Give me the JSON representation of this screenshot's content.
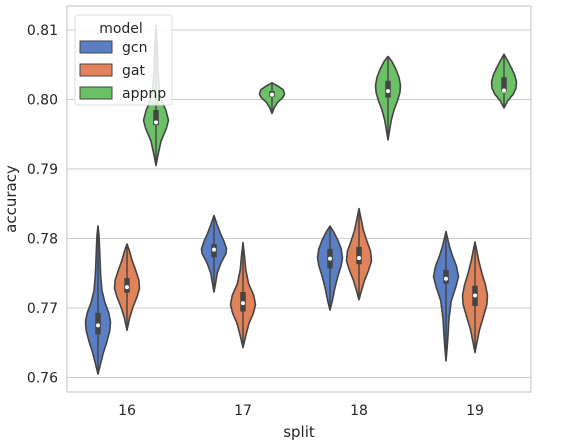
{
  "chart_data": {
    "type": "violin",
    "xlabel": "split",
    "ylabel": "accuracy",
    "categories": [
      "16",
      "17",
      "18",
      "19"
    ],
    "ylim": [
      0.758,
      0.8135
    ],
    "yticks": [
      0.76,
      0.77,
      0.78,
      0.79,
      0.8,
      0.81
    ],
    "ytick_labels": [
      "0.76",
      "0.77",
      "0.78",
      "0.79",
      "0.80",
      "0.81"
    ],
    "grid": true,
    "legend": {
      "title": "model",
      "placement": "top-left"
    },
    "series": [
      {
        "name": "gcn",
        "color": "#5a7fc4",
        "violins": [
          {
            "category": "16",
            "min": 0.7605,
            "max": 0.7818,
            "q1": 0.7662,
            "median": 0.7675,
            "q3": 0.7693,
            "profile": [
              [
                0.7605,
                0.0
              ],
              [
                0.7618,
                0.18
              ],
              [
                0.7635,
                0.42
              ],
              [
                0.7652,
                0.72
              ],
              [
                0.7668,
                0.95
              ],
              [
                0.768,
                1.0
              ],
              [
                0.7693,
                0.86
              ],
              [
                0.7708,
                0.55
              ],
              [
                0.7725,
                0.32
              ],
              [
                0.7745,
                0.22
              ],
              [
                0.7765,
                0.17
              ],
              [
                0.7785,
                0.13
              ],
              [
                0.7805,
                0.08
              ],
              [
                0.7818,
                0.0
              ]
            ]
          },
          {
            "category": "17",
            "min": 0.7723,
            "max": 0.7833,
            "q1": 0.7773,
            "median": 0.7784,
            "q3": 0.7792,
            "profile": [
              [
                0.7723,
                0.0
              ],
              [
                0.7735,
                0.12
              ],
              [
                0.775,
                0.26
              ],
              [
                0.7765,
                0.56
              ],
              [
                0.7778,
                0.95
              ],
              [
                0.7785,
                1.0
              ],
              [
                0.7795,
                0.82
              ],
              [
                0.7808,
                0.5
              ],
              [
                0.782,
                0.25
              ],
              [
                0.7833,
                0.0
              ]
            ]
          },
          {
            "category": "18",
            "min": 0.7697,
            "max": 0.7818,
            "q1": 0.7757,
            "median": 0.7771,
            "q3": 0.7785,
            "profile": [
              [
                0.7697,
                0.0
              ],
              [
                0.771,
                0.18
              ],
              [
                0.7728,
                0.38
              ],
              [
                0.7745,
                0.62
              ],
              [
                0.776,
                0.88
              ],
              [
                0.7772,
                1.0
              ],
              [
                0.7785,
                0.9
              ],
              [
                0.7798,
                0.62
              ],
              [
                0.781,
                0.28
              ],
              [
                0.7818,
                0.0
              ]
            ]
          },
          {
            "category": "19",
            "min": 0.7624,
            "max": 0.781,
            "q1": 0.7735,
            "median": 0.7742,
            "q3": 0.7755,
            "profile": [
              [
                0.7624,
                0.0
              ],
              [
                0.764,
                0.08
              ],
              [
                0.766,
                0.16
              ],
              [
                0.7685,
                0.24
              ],
              [
                0.771,
                0.42
              ],
              [
                0.773,
                0.78
              ],
              [
                0.7745,
                1.0
              ],
              [
                0.776,
                0.84
              ],
              [
                0.7775,
                0.52
              ],
              [
                0.779,
                0.26
              ],
              [
                0.781,
                0.0
              ]
            ]
          }
        ]
      },
      {
        "name": "gat",
        "color": "#e0825a",
        "violins": [
          {
            "category": "16",
            "min": 0.7668,
            "max": 0.7792,
            "q1": 0.7722,
            "median": 0.773,
            "q3": 0.7743,
            "profile": [
              [
                0.7668,
                0.0
              ],
              [
                0.7685,
                0.2
              ],
              [
                0.77,
                0.45
              ],
              [
                0.7715,
                0.78
              ],
              [
                0.7728,
                1.0
              ],
              [
                0.774,
                0.95
              ],
              [
                0.7755,
                0.68
              ],
              [
                0.777,
                0.38
              ],
              [
                0.7782,
                0.2
              ],
              [
                0.7792,
                0.0
              ]
            ]
          },
          {
            "category": "17",
            "min": 0.7643,
            "max": 0.7794,
            "q1": 0.7695,
            "median": 0.7707,
            "q3": 0.7723,
            "profile": [
              [
                0.7643,
                0.0
              ],
              [
                0.766,
                0.22
              ],
              [
                0.7678,
                0.48
              ],
              [
                0.7692,
                0.82
              ],
              [
                0.7705,
                1.0
              ],
              [
                0.7718,
                0.86
              ],
              [
                0.7735,
                0.45
              ],
              [
                0.7755,
                0.22
              ],
              [
                0.7775,
                0.12
              ],
              [
                0.7794,
                0.0
              ]
            ]
          },
          {
            "category": "18",
            "min": 0.7712,
            "max": 0.7843,
            "q1": 0.7763,
            "median": 0.7772,
            "q3": 0.7788,
            "profile": [
              [
                0.7712,
                0.0
              ],
              [
                0.7725,
                0.2
              ],
              [
                0.774,
                0.45
              ],
              [
                0.7755,
                0.78
              ],
              [
                0.7768,
                1.0
              ],
              [
                0.7782,
                0.92
              ],
              [
                0.7797,
                0.62
              ],
              [
                0.7812,
                0.35
              ],
              [
                0.7828,
                0.17
              ],
              [
                0.7843,
                0.0
              ]
            ]
          },
          {
            "category": "19",
            "min": 0.7636,
            "max": 0.7795,
            "q1": 0.7703,
            "median": 0.7718,
            "q3": 0.7732,
            "profile": [
              [
                0.7636,
                0.0
              ],
              [
                0.765,
                0.15
              ],
              [
                0.7668,
                0.35
              ],
              [
                0.7688,
                0.68
              ],
              [
                0.7705,
                0.95
              ],
              [
                0.7718,
                1.0
              ],
              [
                0.7733,
                0.84
              ],
              [
                0.775,
                0.55
              ],
              [
                0.7768,
                0.3
              ],
              [
                0.7782,
                0.15
              ],
              [
                0.7795,
                0.0
              ]
            ]
          }
        ]
      },
      {
        "name": "appnp",
        "color": "#6cc167",
        "violins": [
          {
            "category": "16",
            "min": 0.7905,
            "max": 0.8107,
            "q1": 0.7963,
            "median": 0.7967,
            "q3": 0.7985,
            "profile": [
              [
                0.7905,
                0.0
              ],
              [
                0.792,
                0.16
              ],
              [
                0.794,
                0.4
              ],
              [
                0.7958,
                0.82
              ],
              [
                0.797,
                1.0
              ],
              [
                0.7985,
                0.78
              ],
              [
                0.8,
                0.42
              ],
              [
                0.802,
                0.24
              ],
              [
                0.8045,
                0.16
              ],
              [
                0.8075,
                0.1
              ],
              [
                0.8107,
                0.0
              ]
            ]
          },
          {
            "category": "17",
            "min": 0.798,
            "max": 0.8024,
            "q1": 0.8004,
            "median": 0.8007,
            "q3": 0.8012,
            "profile": [
              [
                0.798,
                0.0
              ],
              [
                0.7988,
                0.18
              ],
              [
                0.7996,
                0.45
              ],
              [
                0.8003,
                0.88
              ],
              [
                0.8008,
                1.0
              ],
              [
                0.8014,
                0.9
              ],
              [
                0.8019,
                0.5
              ],
              [
                0.8024,
                0.0
              ]
            ]
          },
          {
            "category": "18",
            "min": 0.7942,
            "max": 0.8062,
            "q1": 0.8003,
            "median": 0.8012,
            "q3": 0.8027,
            "profile": [
              [
                0.7942,
                0.0
              ],
              [
                0.7955,
                0.12
              ],
              [
                0.797,
                0.26
              ],
              [
                0.7985,
                0.48
              ],
              [
                0.7998,
                0.76
              ],
              [
                0.801,
                0.95
              ],
              [
                0.802,
                1.0
              ],
              [
                0.8032,
                0.88
              ],
              [
                0.8045,
                0.6
              ],
              [
                0.8055,
                0.3
              ],
              [
                0.8062,
                0.0
              ]
            ]
          },
          {
            "category": "19",
            "min": 0.7988,
            "max": 0.8065,
            "q1": 0.8011,
            "median": 0.8013,
            "q3": 0.8032,
            "profile": [
              [
                0.7988,
                0.0
              ],
              [
                0.7998,
                0.3
              ],
              [
                0.8008,
                0.75
              ],
              [
                0.8016,
                0.95
              ],
              [
                0.8025,
                1.0
              ],
              [
                0.8035,
                0.86
              ],
              [
                0.8045,
                0.6
              ],
              [
                0.8055,
                0.32
              ],
              [
                0.8065,
                0.0
              ]
            ]
          }
        ]
      }
    ]
  }
}
